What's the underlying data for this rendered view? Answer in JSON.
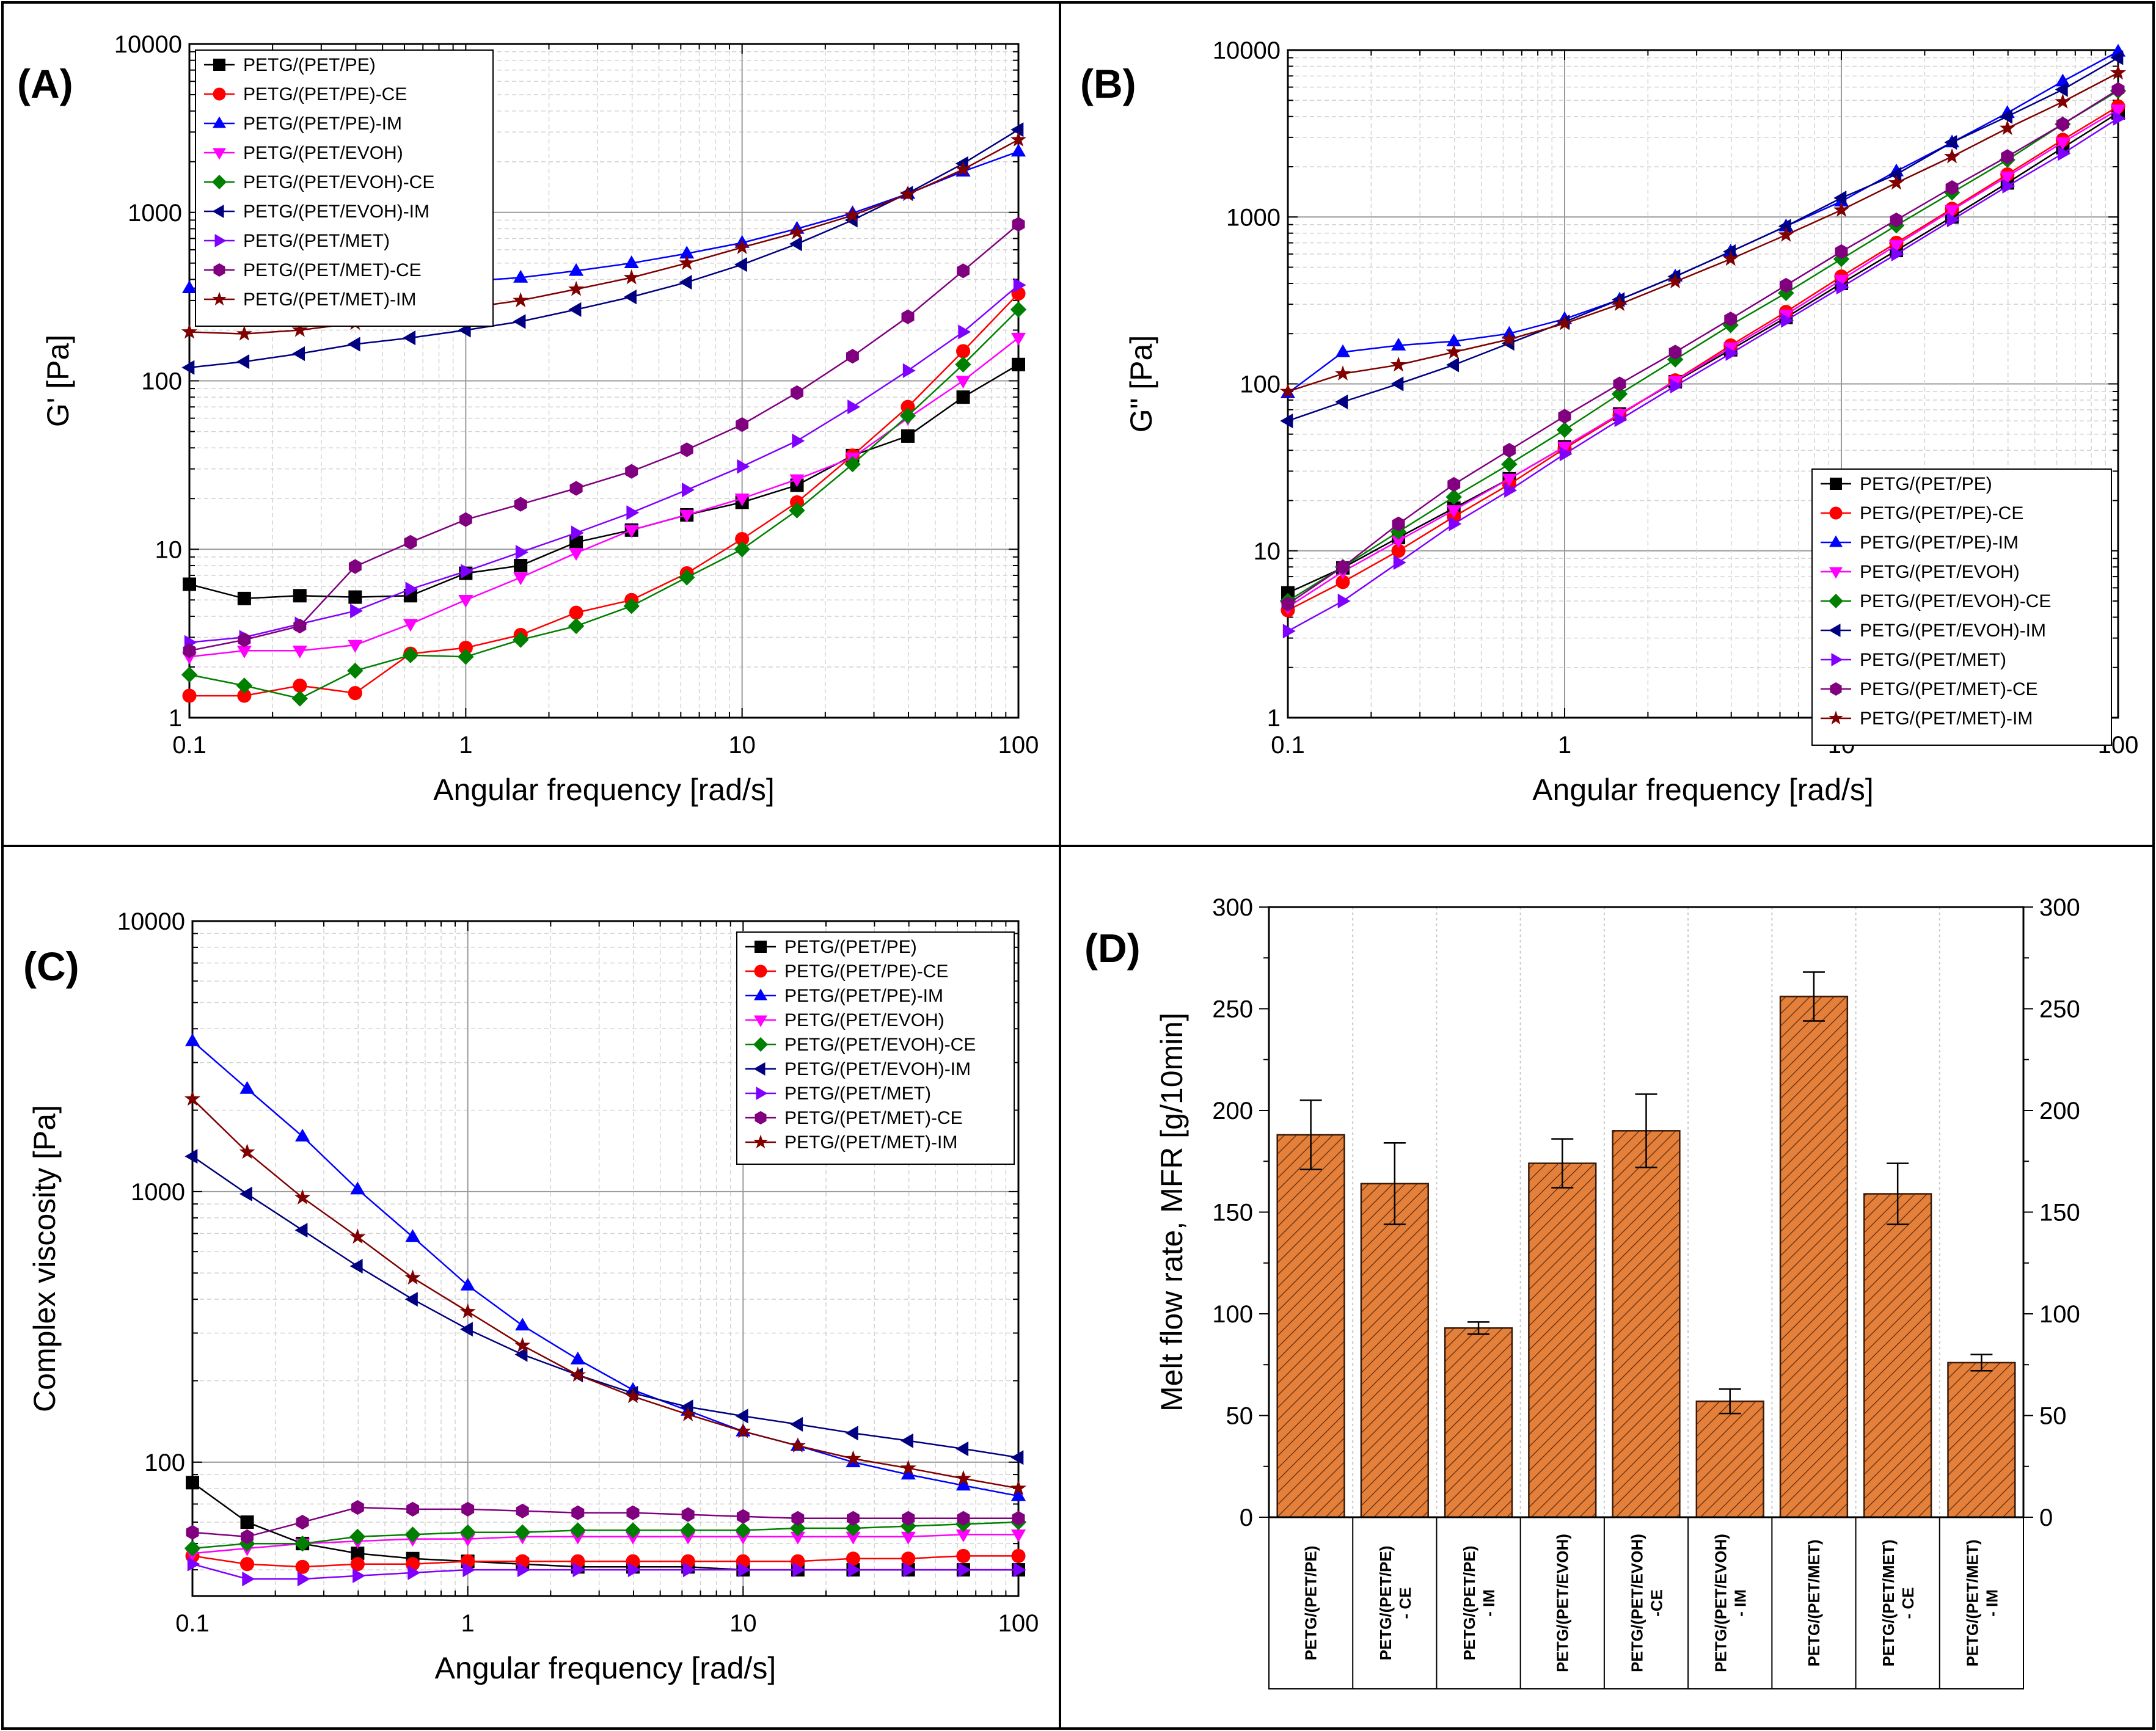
{
  "colors": {
    "PETG/(PET/PE)": "#000000",
    "PETG/(PET/PE)-CE": "#ff0000",
    "PETG/(PET/PE)-IM": "#0000ff",
    "PETG/(PET/EVOH)": "#ff00ff",
    "PETG/(PET/EVOH)-CE": "#008000",
    "PETG/(PET/EVOH)-IM": "#000080",
    "PETG/(PET/MET)": "#8000ff",
    "PETG/(PET/MET)-CE": "#800080",
    "PETG/(PET/MET)-IM": "#800000",
    "bar_fill": "#e4803a",
    "grid": "#a0a0a0"
  },
  "markers": {
    "PETG/(PET/PE)": "square",
    "PETG/(PET/PE)-CE": "circle",
    "PETG/(PET/PE)-IM": "triangle-up",
    "PETG/(PET/EVOH)": "triangle-down",
    "PETG/(PET/EVOH)-CE": "diamond",
    "PETG/(PET/EVOH)-IM": "triangle-left",
    "PETG/(PET/MET)": "triangle-right",
    "PETG/(PET/MET)-CE": "hexagon",
    "PETG/(PET/MET)-IM": "star"
  },
  "chart_data": [
    {
      "panel": "(A)",
      "type": "line",
      "xscale": "log",
      "yscale": "log",
      "xlabel": "Angular frequency [rad/s]",
      "ylabel": "G' [Pa]",
      "xlim": [
        0.1,
        100
      ],
      "ylim": [
        1,
        10000
      ],
      "xticks": [
        0.1,
        1,
        10,
        100
      ],
      "xtick_labels": [
        "0.1",
        "1",
        "10",
        "100"
      ],
      "yticks": [
        1,
        10,
        100,
        1000,
        10000
      ],
      "ytick_labels": [
        "1",
        "10",
        "100",
        "1000",
        "10000"
      ],
      "legend": "top-left",
      "x": [
        0.1,
        0.158,
        0.251,
        0.398,
        0.631,
        1,
        1.58,
        2.51,
        3.98,
        6.31,
        10,
        15.8,
        25.1,
        39.8,
        63.1,
        100
      ],
      "series": [
        {
          "name": "PETG/(PET/PE)",
          "values": [
            6.2,
            5.1,
            5.3,
            5.2,
            5.3,
            7.2,
            8.0,
            11,
            13,
            16,
            19,
            24,
            36,
            47,
            80,
            125
          ]
        },
        {
          "name": "PETG/(PET/PE)-CE",
          "values": [
            1.35,
            1.35,
            1.55,
            1.4,
            2.4,
            2.6,
            3.1,
            4.2,
            5.0,
            7.2,
            11.5,
            19,
            36,
            70,
            150,
            330
          ]
        },
        {
          "name": "PETG/(PET/PE)-IM",
          "values": [
            355,
            350,
            360,
            365,
            375,
            390,
            410,
            450,
            500,
            570,
            660,
            800,
            990,
            1290,
            1750,
            2300
          ]
        },
        {
          "name": "PETG/(PET/EVOH)",
          "values": [
            2.3,
            2.5,
            2.5,
            2.7,
            3.6,
            5.0,
            6.8,
            9.5,
            13,
            16,
            20,
            26,
            35,
            60,
            100,
            180
          ]
        },
        {
          "name": "PETG/(PET/EVOH)-CE",
          "values": [
            1.8,
            1.55,
            1.3,
            1.9,
            2.35,
            2.3,
            2.9,
            3.5,
            4.6,
            6.8,
            10,
            17,
            32,
            62,
            125,
            265
          ]
        },
        {
          "name": "PETG/(PET/EVOH)-IM",
          "values": [
            120,
            130,
            145,
            165,
            180,
            200,
            225,
            265,
            315,
            385,
            490,
            650,
            900,
            1300,
            1950,
            3100
          ]
        },
        {
          "name": "PETG/(PET/MET)",
          "values": [
            2.8,
            3.0,
            3.6,
            4.3,
            5.8,
            7.4,
            9.6,
            12.5,
            16.5,
            22.5,
            31,
            44,
            70,
            115,
            195,
            370
          ]
        },
        {
          "name": "PETG/(PET/MET)-CE",
          "values": [
            2.5,
            2.9,
            3.5,
            7.9,
            11,
            15,
            18.5,
            23,
            29,
            39,
            55,
            85,
            140,
            240,
            450,
            850
          ]
        },
        {
          "name": "PETG/(PET/MET)-IM",
          "values": [
            195,
            190,
            200,
            220,
            240,
            270,
            300,
            350,
            410,
            500,
            620,
            760,
            960,
            1280,
            1800,
            2700
          ]
        }
      ]
    },
    {
      "panel": "(B)",
      "type": "line",
      "xscale": "log",
      "yscale": "log",
      "xlabel": "Angular frequency [rad/s]",
      "ylabel": "G\" [Pa]",
      "xlim": [
        0.1,
        100
      ],
      "ylim": [
        1,
        10000
      ],
      "xticks": [
        0.1,
        1,
        10,
        100
      ],
      "xtick_labels": [
        "0.1",
        "1",
        "10",
        "100"
      ],
      "yticks": [
        1,
        10,
        100,
        1000,
        10000
      ],
      "ytick_labels": [
        "1",
        "10",
        "100",
        "1000",
        "10000"
      ],
      "legend": "bottom-right",
      "x": [
        0.1,
        0.158,
        0.251,
        0.398,
        0.631,
        1,
        1.58,
        2.51,
        3.98,
        6.31,
        10,
        15.8,
        25.1,
        39.8,
        63.1,
        100
      ],
      "series": [
        {
          "name": "PETG/(PET/PE)",
          "values": [
            5.6,
            7.9,
            12,
            18,
            27,
            42,
            66,
            103,
            160,
            250,
            400,
            630,
            1000,
            1600,
            2600,
            4200
          ]
        },
        {
          "name": "PETG/(PET/PE)-CE",
          "values": [
            4.4,
            6.5,
            10,
            16,
            25,
            41,
            65,
            105,
            170,
            270,
            440,
            700,
            1120,
            1800,
            2900,
            4600
          ]
        },
        {
          "name": "PETG/(PET/PE)-IM",
          "values": [
            88,
            155,
            170,
            180,
            200,
            245,
            320,
            440,
            620,
            880,
            1240,
            1880,
            2800,
            4200,
            6500,
            9800
          ]
        },
        {
          "name": "PETG/(PET/EVOH)",
          "values": [
            4.6,
            7.5,
            11.5,
            17.5,
            27,
            42,
            66,
            104,
            165,
            260,
            420,
            680,
            1100,
            1750,
            2800,
            4400
          ]
        },
        {
          "name": "PETG/(PET/EVOH)-CE",
          "values": [
            5.0,
            8.0,
            13,
            21,
            33,
            53,
            87,
            140,
            225,
            350,
            560,
            890,
            1400,
            2200,
            3600,
            5700
          ]
        },
        {
          "name": "PETG/(PET/EVOH)-IM",
          "values": [
            60,
            78,
            100,
            130,
            175,
            235,
            320,
            440,
            620,
            880,
            1300,
            1800,
            2800,
            4000,
            5800,
            9000
          ]
        },
        {
          "name": "PETG/(PET/MET)",
          "values": [
            3.3,
            5.0,
            8.5,
            14.5,
            23,
            38,
            61,
            97,
            152,
            240,
            380,
            600,
            960,
            1530,
            2400,
            3900
          ]
        },
        {
          "name": "PETG/(PET/MET)-CE",
          "values": [
            4.8,
            8.0,
            14.5,
            25,
            40,
            64,
            100,
            155,
            245,
            390,
            620,
            960,
            1500,
            2300,
            3600,
            5800
          ]
        },
        {
          "name": "PETG/(PET/MET)-IM",
          "values": [
            90,
            115,
            130,
            155,
            185,
            230,
            300,
            410,
            560,
            780,
            1100,
            1600,
            2300,
            3400,
            4900,
            7300
          ]
        }
      ]
    },
    {
      "panel": "(C)",
      "type": "line",
      "xscale": "log",
      "yscale": "log",
      "xlabel": "Angular frequency [rad/s]",
      "ylabel": "Complex viscosity [Pa]",
      "xlim": [
        0.1,
        100
      ],
      "ylim": [
        32,
        10000
      ],
      "xticks": [
        0.1,
        1,
        10,
        100
      ],
      "xtick_labels": [
        "0.1",
        "1",
        "10",
        "100"
      ],
      "yticks": [
        100,
        1000,
        10000
      ],
      "ytick_labels": [
        "100",
        "1000",
        "10000"
      ],
      "legend": "top-right",
      "x": [
        0.1,
        0.158,
        0.251,
        0.398,
        0.631,
        1,
        1.58,
        2.51,
        3.98,
        6.31,
        10,
        15.8,
        25.1,
        39.8,
        63.1,
        100
      ],
      "series": [
        {
          "name": "PETG/(PET/PE)",
          "values": [
            84,
            60,
            50,
            46,
            44,
            43,
            42,
            41,
            41,
            41,
            40,
            40,
            40,
            40,
            40,
            40
          ]
        },
        {
          "name": "PETG/(PET/PE)-CE",
          "values": [
            45,
            42,
            41,
            42,
            42,
            43,
            43,
            43,
            43,
            43,
            43,
            43,
            44,
            44,
            45,
            45
          ]
        },
        {
          "name": "PETG/(PET/PE)-IM",
          "values": [
            3600,
            2400,
            1600,
            1020,
            680,
            450,
            320,
            240,
            185,
            155,
            130,
            115,
            100,
            90,
            82,
            75
          ]
        },
        {
          "name": "PETG/(PET/EVOH)",
          "values": [
            46,
            48,
            50,
            51,
            52,
            52,
            53,
            53,
            53,
            53,
            53,
            53,
            53,
            53,
            54,
            54
          ]
        },
        {
          "name": "PETG/(PET/EVOH)-CE",
          "values": [
            48,
            50,
            50,
            53,
            54,
            55,
            55,
            56,
            56,
            56,
            56,
            57,
            57,
            58,
            59,
            60
          ]
        },
        {
          "name": "PETG/(PET/EVOH)-IM",
          "values": [
            1350,
            980,
            720,
            530,
            400,
            310,
            250,
            210,
            180,
            160,
            148,
            138,
            128,
            120,
            112,
            104
          ]
        },
        {
          "name": "PETG/(PET/MET)",
          "values": [
            42,
            37,
            37,
            38,
            39,
            40,
            40,
            40,
            40,
            40,
            40,
            40,
            40,
            40,
            40,
            40
          ]
        },
        {
          "name": "PETG/(PET/MET)-CE",
          "values": [
            55,
            53,
            60,
            68,
            67,
            67,
            66,
            65,
            65,
            64,
            63,
            62,
            62,
            62,
            62,
            62
          ]
        },
        {
          "name": "PETG/(PET/MET)-IM",
          "values": [
            2200,
            1400,
            950,
            680,
            480,
            360,
            270,
            210,
            175,
            150,
            130,
            115,
            103,
            95,
            87,
            80
          ]
        }
      ]
    },
    {
      "panel": "(D)",
      "type": "bar",
      "ylabel": "Melt flow rate, MFR [g/10min]",
      "ylim": [
        0,
        300
      ],
      "yticks": [
        0,
        50,
        100,
        150,
        200,
        250,
        300
      ],
      "ytick_labels": [
        "0",
        "50",
        "100",
        "150",
        "200",
        "250",
        "300"
      ],
      "categories": [
        "PETG/(PET/PE)",
        "PETG/(PET/PE)\n- CE",
        "PETG/(PET/PE)\n- IM",
        "PETG/(PET/EVOH)",
        "PETG/(PET/EVOH)\n-CE",
        "PETG/(PET/EVOH)\n- IM",
        "PETG/(PET/MET)",
        "PETG/(PET/MET)\n- CE",
        "PETG/(PET/MET)\n- IM"
      ],
      "values": [
        188,
        164,
        93,
        174,
        190,
        57,
        256,
        159,
        76
      ],
      "errors": [
        17,
        20,
        3,
        12,
        18,
        6,
        12,
        15,
        4
      ]
    }
  ]
}
